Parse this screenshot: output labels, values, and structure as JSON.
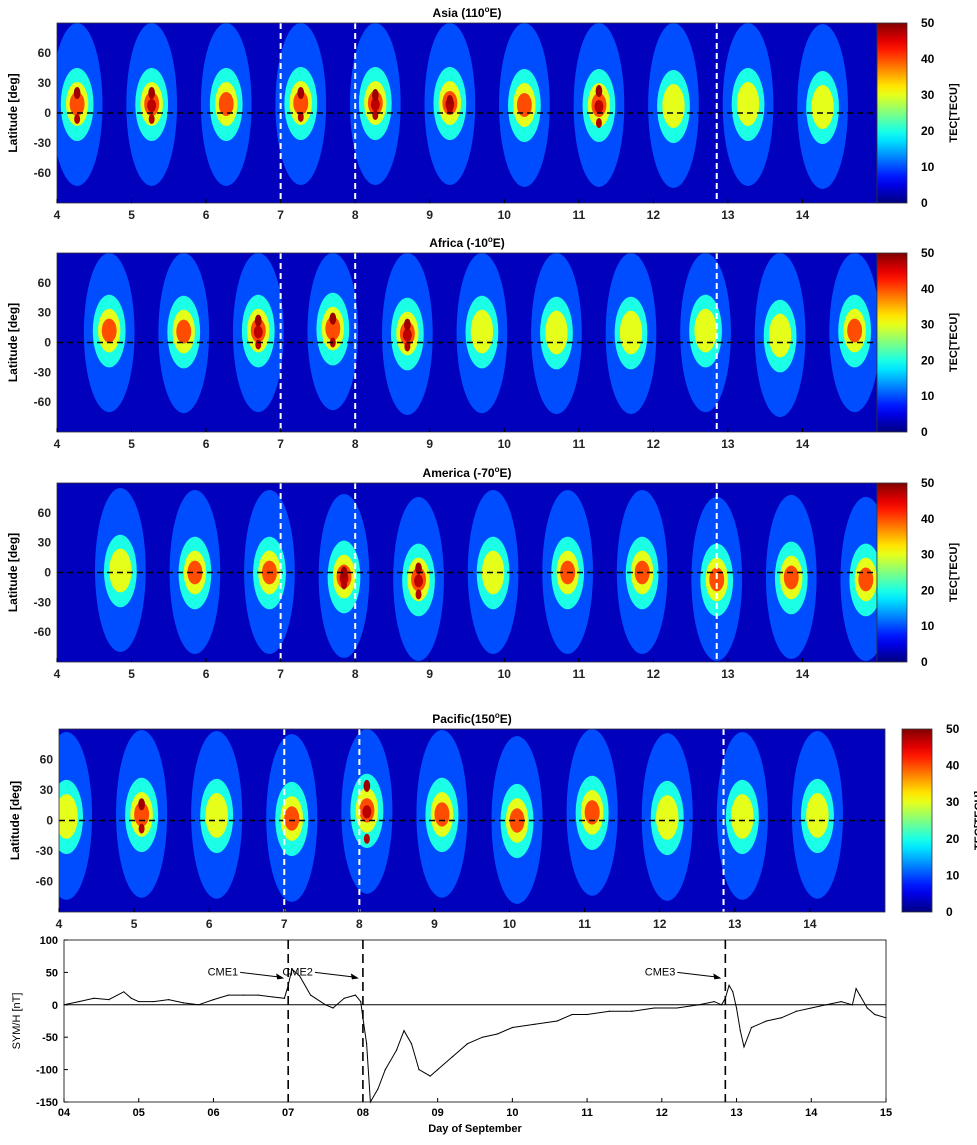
{
  "chart_data": [
    {
      "type": "heatmap",
      "title": "Asia (110",
      "title_sup": "o",
      "title_tail": "E)",
      "ylabel": "Latitude [deg]",
      "colorbar_label": "TEC[TECU]",
      "xlim": [
        4,
        15
      ],
      "ylim": [
        -90,
        90
      ],
      "x_ticks": [
        "4",
        "5",
        "6",
        "7",
        "8",
        "9",
        "10",
        "11",
        "12",
        "13",
        "14"
      ],
      "y_ticks": [
        "60",
        "30",
        "0",
        "-30",
        "-60"
      ],
      "colorbar_ticks": [
        "50",
        "40",
        "30",
        "20",
        "10",
        "0"
      ],
      "clim": [
        0,
        50
      ],
      "event_lines_day": [
        7.0,
        8.0,
        12.85
      ],
      "equator_line": 0,
      "daily_peak_day_offset": 0.27,
      "daily_peaks": [
        {
          "day": 4,
          "max": 46,
          "north": 20,
          "south": -6
        },
        {
          "day": 5,
          "max": 48,
          "north": 20,
          "south": -6
        },
        {
          "day": 6,
          "max": 44,
          "north": 18,
          "south": -4
        },
        {
          "day": 7,
          "max": 46,
          "north": 20,
          "south": -4
        },
        {
          "day": 8,
          "max": 48,
          "north": 18,
          "south": -2
        },
        {
          "day": 9,
          "max": 48,
          "north": 12,
          "south": 4
        },
        {
          "day": 10,
          "max": 42,
          "north": 18,
          "south": -6
        },
        {
          "day": 11,
          "max": 48,
          "north": 22,
          "south": -10
        },
        {
          "day": 12,
          "max": 36,
          "north": 14,
          "south": -4
        },
        {
          "day": 13,
          "max": 38,
          "north": 16,
          "south": -2
        },
        {
          "day": 14,
          "max": 32,
          "north": 10,
          "south": -2
        }
      ]
    },
    {
      "type": "heatmap",
      "title": "Africa (-10",
      "title_sup": "o",
      "title_tail": "E)",
      "ylabel": "Latitude [deg]",
      "colorbar_label": "TEC[TECU]",
      "xlim": [
        4,
        15
      ],
      "ylim": [
        -90,
        90
      ],
      "x_ticks": [
        "4",
        "5",
        "6",
        "7",
        "8",
        "9",
        "10",
        "11",
        "12",
        "13",
        "14"
      ],
      "y_ticks": [
        "60",
        "30",
        "0",
        "-30",
        "-60"
      ],
      "colorbar_ticks": [
        "50",
        "40",
        "30",
        "20",
        "10",
        "0"
      ],
      "clim": [
        0,
        50
      ],
      "event_lines_day": [
        7.0,
        8.0,
        12.85
      ],
      "equator_line": 0,
      "daily_peak_day_offset": 0.7,
      "daily_peaks": [
        {
          "day": 4,
          "max": 40,
          "north": 20,
          "south": 0
        },
        {
          "day": 5,
          "max": 42,
          "north": 18,
          "south": 0
        },
        {
          "day": 6,
          "max": 48,
          "north": 22,
          "south": -2
        },
        {
          "day": 7,
          "max": 46,
          "north": 24,
          "south": 0
        },
        {
          "day": 8,
          "max": 50,
          "north": 18,
          "south": -4
        },
        {
          "day": 9,
          "max": 36,
          "north": 18,
          "south": 0
        },
        {
          "day": 10,
          "max": 38,
          "north": 16,
          "south": 0
        },
        {
          "day": 11,
          "max": 36,
          "north": 16,
          "south": 0
        },
        {
          "day": 12,
          "max": 34,
          "north": 20,
          "south": 0
        },
        {
          "day": 13,
          "max": 34,
          "north": 12,
          "south": -2
        },
        {
          "day": 14,
          "max": 40,
          "north": 20,
          "south": 0
        }
      ]
    },
    {
      "type": "heatmap",
      "title": "America (-70",
      "title_sup": "o",
      "title_tail": "E)",
      "ylabel": "Latitude [deg]",
      "colorbar_label": "TEC[TECU]",
      "xlim": [
        4,
        15
      ],
      "ylim": [
        -90,
        90
      ],
      "x_ticks": [
        "4",
        "5",
        "6",
        "7",
        "8",
        "9",
        "10",
        "11",
        "12",
        "13",
        "14"
      ],
      "y_ticks": [
        "60",
        "30",
        "0",
        "-30",
        "-60"
      ],
      "colorbar_ticks": [
        "50",
        "40",
        "30",
        "20",
        "10",
        "0"
      ],
      "clim": [
        0,
        50
      ],
      "event_lines_day": [
        7.0,
        8.0,
        12.85
      ],
      "equator_line": 0,
      "daily_peak_day_offset": 0.85,
      "daily_peaks": [
        {
          "day": 4,
          "max": 34,
          "north": 4,
          "south": -4
        },
        {
          "day": 5,
          "max": 40,
          "north": 0,
          "south": -4
        },
        {
          "day": 6,
          "max": 40,
          "north": 0,
          "south": -4
        },
        {
          "day": 7,
          "max": 48,
          "north": 0,
          "south": -12
        },
        {
          "day": 8,
          "max": 50,
          "north": 4,
          "south": -22
        },
        {
          "day": 9,
          "max": 34,
          "north": 0,
          "south": -4
        },
        {
          "day": 10,
          "max": 40,
          "north": 0,
          "south": -4
        },
        {
          "day": 11,
          "max": 40,
          "north": 0,
          "south": -4
        },
        {
          "day": 12,
          "max": 40,
          "north": 0,
          "south": -18
        },
        {
          "day": 13,
          "max": 44,
          "north": 2,
          "south": -16
        },
        {
          "day": 14,
          "max": 42,
          "north": 0,
          "south": -18
        }
      ]
    },
    {
      "type": "heatmap",
      "title": "Pacific(150",
      "title_sup": "o",
      "title_tail": "E)",
      "ylabel": "Latitude [deg]",
      "colorbar_label": "TEC[TECU]",
      "xlim": [
        4,
        15
      ],
      "ylim": [
        -90,
        90
      ],
      "x_ticks": [
        "4",
        "5",
        "6",
        "7",
        "8",
        "9",
        "10",
        "11",
        "12",
        "13",
        "14"
      ],
      "y_ticks": [
        "60",
        "30",
        "0",
        "-30",
        "-60"
      ],
      "colorbar_ticks": [
        "50",
        "40",
        "30",
        "20",
        "10",
        "0"
      ],
      "clim": [
        0,
        50
      ],
      "event_lines_day": [
        7.0,
        8.0,
        12.85
      ],
      "equator_line": 0,
      "daily_peak_day_offset": 0.1,
      "daily_peaks": [
        {
          "day": 4,
          "max": 32,
          "north": 8,
          "south": -4
        },
        {
          "day": 5,
          "max": 46,
          "north": 16,
          "south": -8
        },
        {
          "day": 6,
          "max": 32,
          "north": 8,
          "south": -2
        },
        {
          "day": 7,
          "max": 42,
          "north": 4,
          "south": -4
        },
        {
          "day": 8,
          "max": 50,
          "north": 34,
          "south": -18
        },
        {
          "day": 9,
          "max": 42,
          "north": 10,
          "south": -2
        },
        {
          "day": 10,
          "max": 40,
          "north": 4,
          "south": -8
        },
        {
          "day": 11,
          "max": 44,
          "north": 16,
          "south": -4
        },
        {
          "day": 12,
          "max": 32,
          "north": 4,
          "south": -2
        },
        {
          "day": 13,
          "max": 36,
          "north": 6,
          "south": -2
        },
        {
          "day": 14,
          "max": 30,
          "north": 8,
          "south": -2
        }
      ]
    },
    {
      "type": "line",
      "xlabel": "Day of September",
      "ylabel": "SYM/H [nT]",
      "xlim": [
        4,
        15
      ],
      "ylim": [
        -150,
        100
      ],
      "x_ticks": [
        "04",
        "05",
        "06",
        "07",
        "08",
        "09",
        "10",
        "11",
        "12",
        "13",
        "14",
        "15"
      ],
      "y_ticks": [
        "100",
        "50",
        "0",
        "-50",
        "-100",
        "-150"
      ],
      "zero_line": 0,
      "event_lines_day": [
        7.0,
        8.0,
        12.85
      ],
      "annotations": [
        {
          "label": "CME1",
          "day": 7.0,
          "value": 50
        },
        {
          "label": "CME2",
          "day": 8.0,
          "value": 50
        },
        {
          "label": "CME3",
          "day": 12.85,
          "value": 50
        }
      ],
      "x": [
        4.0,
        4.2,
        4.4,
        4.6,
        4.8,
        4.9,
        5.0,
        5.2,
        5.4,
        5.6,
        5.8,
        6.0,
        6.2,
        6.4,
        6.6,
        6.8,
        6.95,
        7.0,
        7.05,
        7.15,
        7.3,
        7.5,
        7.6,
        7.75,
        7.9,
        7.97,
        8.0,
        8.05,
        8.1,
        8.2,
        8.3,
        8.45,
        8.55,
        8.65,
        8.75,
        8.9,
        9.0,
        9.2,
        9.4,
        9.6,
        9.8,
        10.0,
        10.3,
        10.6,
        10.8,
        11.0,
        11.3,
        11.6,
        11.9,
        12.2,
        12.5,
        12.7,
        12.8,
        12.85,
        12.9,
        12.95,
        13.0,
        13.05,
        13.1,
        13.2,
        13.4,
        13.6,
        13.8,
        14.0,
        14.2,
        14.4,
        14.55,
        14.6,
        14.65,
        14.75,
        14.85,
        15.0
      ],
      "values": [
        0,
        5,
        10,
        8,
        20,
        10,
        5,
        5,
        8,
        3,
        0,
        8,
        15,
        15,
        15,
        12,
        10,
        30,
        55,
        45,
        15,
        0,
        -5,
        10,
        15,
        5,
        -20,
        -60,
        -150,
        -130,
        -100,
        -70,
        -40,
        -60,
        -100,
        -110,
        -100,
        -80,
        -60,
        -50,
        -45,
        -35,
        -30,
        -25,
        -15,
        -15,
        -10,
        -10,
        -5,
        -5,
        0,
        5,
        0,
        10,
        30,
        20,
        -5,
        -40,
        -65,
        -35,
        -25,
        -20,
        -10,
        -5,
        0,
        5,
        0,
        25,
        15,
        -5,
        -15,
        -20
      ]
    }
  ]
}
